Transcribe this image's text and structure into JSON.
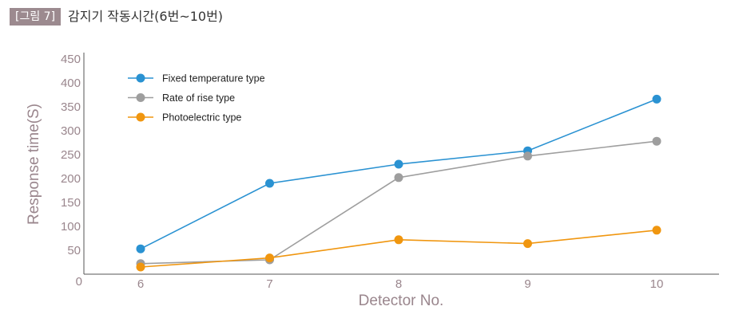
{
  "header": {
    "badge": "[그림 7]",
    "title": "감지기 작동시간(6번~10번)"
  },
  "chart_data": {
    "type": "line",
    "title": "감지기 작동시간(6번~10번)",
    "xlabel": "Detector No.",
    "ylabel": "Response time(S)",
    "categories": [
      "6",
      "7",
      "8",
      "9",
      "10"
    ],
    "x_tick_labels": [
      "6",
      "7",
      "8",
      "9",
      "10"
    ],
    "y_tick_labels": [
      "0",
      "50",
      "100",
      "150",
      "200",
      "250",
      "300",
      "350",
      "400",
      "450"
    ],
    "ylim": [
      0,
      450
    ],
    "grid": false,
    "legend_position": "top-left",
    "series": [
      {
        "name": "Fixed temperature type",
        "color": "#2a92d2",
        "values": [
          53,
          190,
          230,
          258,
          366
        ]
      },
      {
        "name": "Rate of rise type",
        "color": "#9e9e9e",
        "values": [
          22,
          30,
          202,
          247,
          278
        ]
      },
      {
        "name": "Photoelectric type",
        "color": "#f0960f",
        "values": [
          15,
          34,
          72,
          64,
          92
        ]
      }
    ]
  }
}
